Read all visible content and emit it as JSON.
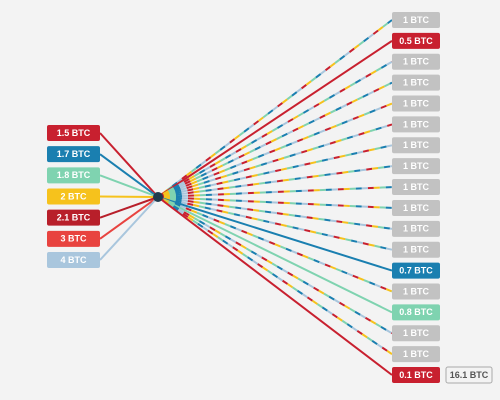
{
  "inputs": [
    {
      "label": "1.5 BTC",
      "color": "#c8202f"
    },
    {
      "label": "1.7 BTC",
      "color": "#1a7fb0"
    },
    {
      "label": "1.8 BTC",
      "color": "#7fd3b0"
    },
    {
      "label": "2 BTC",
      "color": "#f6c21c"
    },
    {
      "label": "2.1 BTC",
      "color": "#b81f2a"
    },
    {
      "label": "3 BTC",
      "color": "#e8433f"
    },
    {
      "label": "4 BTC",
      "color": "#a9c6dd"
    }
  ],
  "outputs": [
    {
      "label": "1 BTC",
      "color": "#c2c2c2"
    },
    {
      "label": "0.5 BTC",
      "color": "#c8202f"
    },
    {
      "label": "1 BTC",
      "color": "#c2c2c2"
    },
    {
      "label": "1 BTC",
      "color": "#c2c2c2"
    },
    {
      "label": "1 BTC",
      "color": "#c2c2c2"
    },
    {
      "label": "1 BTC",
      "color": "#c2c2c2"
    },
    {
      "label": "1 BTC",
      "color": "#c2c2c2"
    },
    {
      "label": "1 BTC",
      "color": "#c2c2c2"
    },
    {
      "label": "1 BTC",
      "color": "#c2c2c2"
    },
    {
      "label": "1 BTC",
      "color": "#c2c2c2"
    },
    {
      "label": "1 BTC",
      "color": "#c2c2c2"
    },
    {
      "label": "1 BTC",
      "color": "#c2c2c2"
    },
    {
      "label": "0.7 BTC",
      "color": "#1a7fb0"
    },
    {
      "label": "1 BTC",
      "color": "#c2c2c2"
    },
    {
      "label": "0.8 BTC",
      "color": "#7fd3b0"
    },
    {
      "label": "1 BTC",
      "color": "#c2c2c2"
    },
    {
      "label": "1 BTC",
      "color": "#c2c2c2"
    },
    {
      "label": "0.1 BTC",
      "color": "#c8202f"
    }
  ],
  "total": "16.1 BTC"
}
